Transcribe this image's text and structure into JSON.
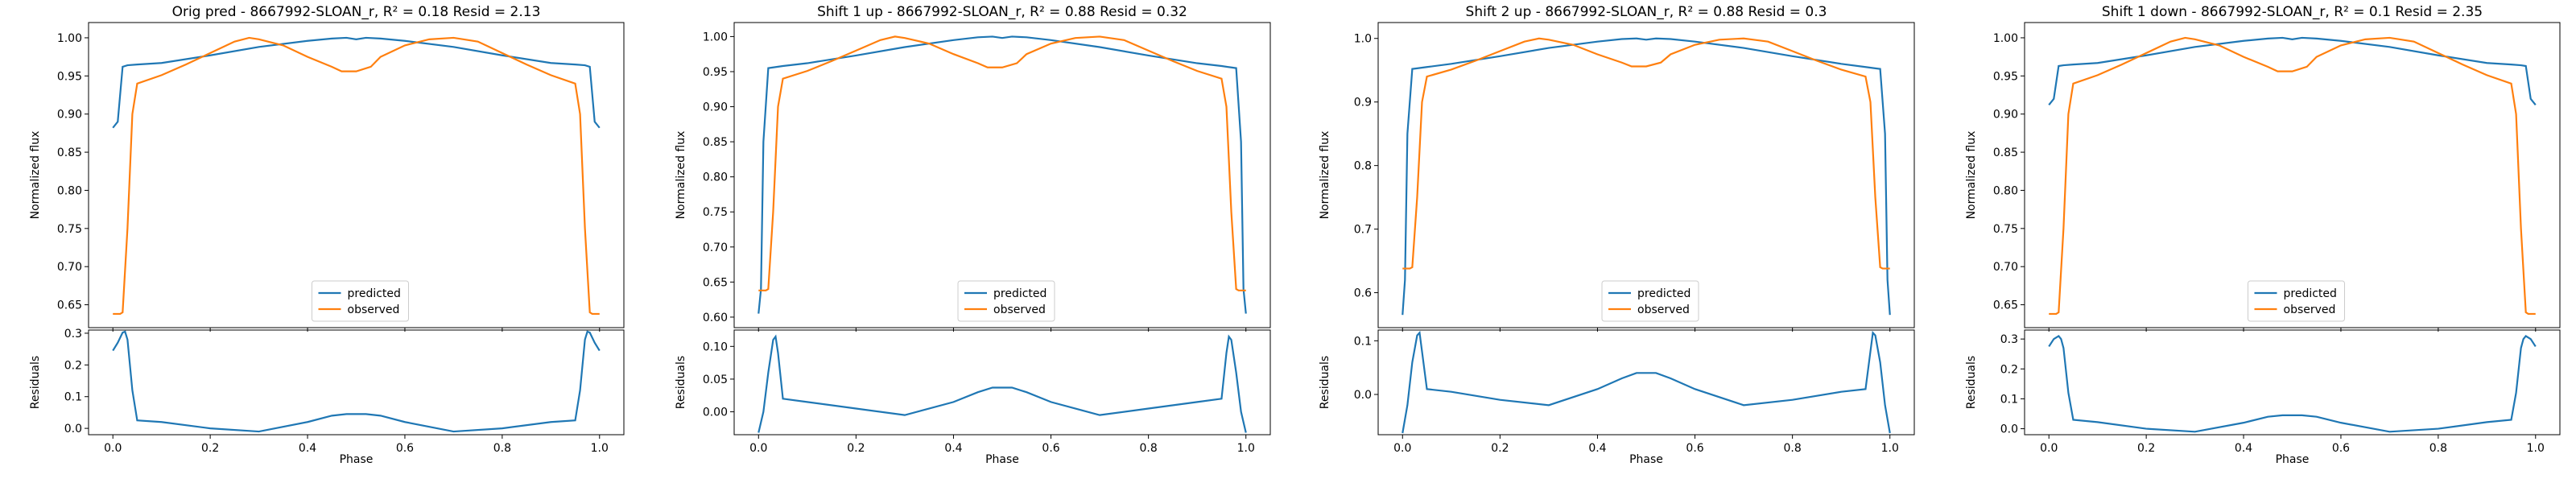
{
  "colors": {
    "predicted": "#1f77b4",
    "observed": "#ff7f0e"
  },
  "chart_data": [
    {
      "type": "line",
      "title": "Orig pred - 8667992-SLOAN_r, R² = 0.18 Resid = 2.13",
      "xlabel": "Phase",
      "ylabel": "Normalized flux",
      "residual_ylabel": "Residuals",
      "xlim": [
        -0.05,
        1.05
      ],
      "ylim": [
        0.62,
        1.02
      ],
      "yticks": [
        "0.65",
        "0.70",
        "0.75",
        "0.80",
        "0.85",
        "0.90",
        "0.95",
        "1.00"
      ],
      "residual_ylim": [
        -0.02,
        0.31
      ],
      "residual_yticks": [
        "0.0",
        "0.1",
        "0.2",
        "0.3"
      ],
      "xticks": [
        "0.0",
        "0.2",
        "0.4",
        "0.6",
        "0.8",
        "1.0"
      ],
      "legend": {
        "position": "lower-center",
        "entries": [
          "predicted",
          "observed"
        ]
      },
      "series": [
        {
          "name": "predicted",
          "x": [
            0,
            0.01,
            0.02,
            0.03,
            0.05,
            0.1,
            0.2,
            0.3,
            0.4,
            0.45,
            0.48,
            0.5,
            0.52,
            0.55,
            0.6,
            0.7,
            0.8,
            0.9,
            0.95,
            0.97,
            0.98,
            0.99,
            1.0
          ],
          "y": [
            0.882,
            0.89,
            0.962,
            0.964,
            0.965,
            0.967,
            0.977,
            0.988,
            0.996,
            0.999,
            1.0,
            0.998,
            1.0,
            0.999,
            0.996,
            0.988,
            0.977,
            0.967,
            0.965,
            0.964,
            0.962,
            0.89,
            0.882
          ]
        },
        {
          "name": "observed",
          "x": [
            0,
            0.015,
            0.02,
            0.03,
            0.04,
            0.05,
            0.1,
            0.15,
            0.2,
            0.25,
            0.28,
            0.3,
            0.35,
            0.4,
            0.45,
            0.47,
            0.5,
            0.53,
            0.55,
            0.6,
            0.65,
            0.7,
            0.72,
            0.75,
            0.8,
            0.85,
            0.9,
            0.95,
            0.96,
            0.97,
            0.98,
            0.985,
            1.0
          ],
          "y": [
            0.638,
            0.638,
            0.64,
            0.75,
            0.9,
            0.94,
            0.951,
            0.965,
            0.98,
            0.995,
            1.0,
            0.998,
            0.99,
            0.975,
            0.962,
            0.956,
            0.956,
            0.962,
            0.975,
            0.99,
            0.998,
            1.0,
            0.998,
            0.995,
            0.98,
            0.965,
            0.951,
            0.94,
            0.9,
            0.75,
            0.64,
            0.638,
            0.638
          ]
        }
      ],
      "residuals": {
        "x": [
          0,
          0.01,
          0.02,
          0.025,
          0.03,
          0.04,
          0.05,
          0.1,
          0.2,
          0.3,
          0.4,
          0.45,
          0.48,
          0.5,
          0.52,
          0.55,
          0.6,
          0.7,
          0.8,
          0.9,
          0.95,
          0.96,
          0.97,
          0.975,
          0.98,
          0.99,
          1.0
        ],
        "y": [
          0.245,
          0.27,
          0.302,
          0.305,
          0.28,
          0.12,
          0.025,
          0.02,
          0.0,
          -0.01,
          0.02,
          0.04,
          0.045,
          0.045,
          0.045,
          0.04,
          0.02,
          -0.01,
          0.0,
          0.02,
          0.025,
          0.12,
          0.28,
          0.305,
          0.302,
          0.27,
          0.245
        ]
      }
    },
    {
      "type": "line",
      "title": "Shift 1 up - 8667992-SLOAN_r, R² = 0.88 Resid = 0.32",
      "xlabel": "Phase",
      "ylabel": "Normalized flux",
      "residual_ylabel": "Residuals",
      "xlim": [
        -0.05,
        1.05
      ],
      "ylim": [
        0.585,
        1.02
      ],
      "yticks": [
        "0.60",
        "0.65",
        "0.70",
        "0.75",
        "0.80",
        "0.85",
        "0.90",
        "0.95",
        "1.00"
      ],
      "residual_ylim": [
        -0.035,
        0.125
      ],
      "residual_yticks": [
        "0.00",
        "0.05",
        "0.10"
      ],
      "xticks": [
        "0.0",
        "0.2",
        "0.4",
        "0.6",
        "0.8",
        "1.0"
      ],
      "legend": {
        "position": "lower-center",
        "entries": [
          "predicted",
          "observed"
        ]
      },
      "series": [
        {
          "name": "predicted",
          "x": [
            0,
            0.005,
            0.01,
            0.02,
            0.03,
            0.05,
            0.1,
            0.2,
            0.3,
            0.4,
            0.45,
            0.48,
            0.5,
            0.52,
            0.55,
            0.6,
            0.7,
            0.8,
            0.9,
            0.95,
            0.97,
            0.98,
            0.99,
            0.995,
            1.0
          ],
          "y": [
            0.605,
            0.64,
            0.85,
            0.955,
            0.956,
            0.958,
            0.962,
            0.973,
            0.985,
            0.995,
            0.999,
            1.0,
            0.998,
            1.0,
            0.999,
            0.995,
            0.985,
            0.973,
            0.962,
            0.958,
            0.956,
            0.955,
            0.85,
            0.64,
            0.605
          ]
        },
        {
          "name": "observed",
          "x": [
            0,
            0.015,
            0.02,
            0.03,
            0.04,
            0.05,
            0.1,
            0.15,
            0.2,
            0.25,
            0.28,
            0.3,
            0.35,
            0.4,
            0.45,
            0.47,
            0.5,
            0.53,
            0.55,
            0.6,
            0.65,
            0.7,
            0.72,
            0.75,
            0.8,
            0.85,
            0.9,
            0.95,
            0.96,
            0.97,
            0.98,
            0.985,
            1.0
          ],
          "y": [
            0.638,
            0.638,
            0.64,
            0.75,
            0.9,
            0.94,
            0.951,
            0.965,
            0.98,
            0.995,
            1.0,
            0.998,
            0.99,
            0.975,
            0.962,
            0.956,
            0.956,
            0.962,
            0.975,
            0.99,
            0.998,
            1.0,
            0.998,
            0.995,
            0.98,
            0.965,
            0.951,
            0.94,
            0.9,
            0.75,
            0.64,
            0.638,
            0.638
          ]
        }
      ],
      "residuals": {
        "x": [
          0,
          0.01,
          0.02,
          0.03,
          0.035,
          0.04,
          0.05,
          0.1,
          0.2,
          0.3,
          0.4,
          0.45,
          0.48,
          0.5,
          0.52,
          0.55,
          0.6,
          0.7,
          0.8,
          0.9,
          0.95,
          0.96,
          0.965,
          0.97,
          0.98,
          0.99,
          1.0
        ],
        "y": [
          -0.032,
          0.0,
          0.06,
          0.11,
          0.115,
          0.09,
          0.02,
          0.015,
          0.005,
          -0.005,
          0.015,
          0.03,
          0.037,
          0.037,
          0.037,
          0.03,
          0.015,
          -0.005,
          0.005,
          0.015,
          0.02,
          0.09,
          0.115,
          0.11,
          0.06,
          0.0,
          -0.032
        ]
      }
    },
    {
      "type": "line",
      "title": "Shift 2 up - 8667992-SLOAN_r, R² = 0.88 Resid = 0.3",
      "xlabel": "Phase",
      "ylabel": "Normalized flux",
      "residual_ylabel": "Residuals",
      "xlim": [
        -0.05,
        1.05
      ],
      "ylim": [
        0.545,
        1.025
      ],
      "yticks": [
        "0.6",
        "0.7",
        "0.8",
        "0.9",
        "1.0"
      ],
      "residual_ylim": [
        -0.075,
        0.12
      ],
      "residual_yticks": [
        "0.0",
        "0.1"
      ],
      "xticks": [
        "0.0",
        "0.2",
        "0.4",
        "0.6",
        "0.8",
        "1.0"
      ],
      "legend": {
        "position": "lower-center",
        "entries": [
          "predicted",
          "observed"
        ]
      },
      "series": [
        {
          "name": "predicted",
          "x": [
            0,
            0.005,
            0.01,
            0.02,
            0.03,
            0.05,
            0.1,
            0.2,
            0.3,
            0.4,
            0.45,
            0.48,
            0.5,
            0.52,
            0.55,
            0.6,
            0.7,
            0.8,
            0.9,
            0.95,
            0.97,
            0.98,
            0.99,
            0.995,
            1.0
          ],
          "y": [
            0.565,
            0.62,
            0.85,
            0.952,
            0.953,
            0.955,
            0.96,
            0.972,
            0.985,
            0.995,
            0.999,
            1.0,
            0.998,
            1.0,
            0.999,
            0.995,
            0.985,
            0.972,
            0.96,
            0.955,
            0.953,
            0.952,
            0.85,
            0.62,
            0.565
          ]
        },
        {
          "name": "observed",
          "x": [
            0,
            0.015,
            0.02,
            0.03,
            0.04,
            0.05,
            0.1,
            0.15,
            0.2,
            0.25,
            0.28,
            0.3,
            0.35,
            0.4,
            0.45,
            0.47,
            0.5,
            0.53,
            0.55,
            0.6,
            0.65,
            0.7,
            0.72,
            0.75,
            0.8,
            0.85,
            0.9,
            0.95,
            0.96,
            0.97,
            0.98,
            0.985,
            1.0
          ],
          "y": [
            0.638,
            0.638,
            0.64,
            0.75,
            0.9,
            0.94,
            0.951,
            0.965,
            0.98,
            0.995,
            1.0,
            0.998,
            0.99,
            0.975,
            0.962,
            0.956,
            0.956,
            0.962,
            0.975,
            0.99,
            0.998,
            1.0,
            0.998,
            0.995,
            0.98,
            0.965,
            0.951,
            0.94,
            0.9,
            0.75,
            0.64,
            0.638,
            0.638
          ]
        }
      ],
      "residuals": {
        "x": [
          0,
          0.01,
          0.02,
          0.03,
          0.035,
          0.04,
          0.05,
          0.1,
          0.2,
          0.3,
          0.4,
          0.45,
          0.48,
          0.5,
          0.52,
          0.55,
          0.6,
          0.7,
          0.8,
          0.9,
          0.95,
          0.96,
          0.965,
          0.97,
          0.98,
          0.99,
          1.0
        ],
        "y": [
          -0.072,
          -0.02,
          0.06,
          0.11,
          0.115,
          0.08,
          0.01,
          0.005,
          -0.01,
          -0.02,
          0.01,
          0.03,
          0.04,
          0.04,
          0.04,
          0.03,
          0.01,
          -0.02,
          -0.01,
          0.005,
          0.01,
          0.08,
          0.115,
          0.11,
          0.06,
          -0.02,
          -0.072
        ]
      }
    },
    {
      "type": "line",
      "title": "Shift 1 down - 8667992-SLOAN_r, R² = 0.1 Resid = 2.35",
      "xlabel": "Phase",
      "ylabel": "Normalized flux",
      "residual_ylabel": "Residuals",
      "xlim": [
        -0.05,
        1.05
      ],
      "ylim": [
        0.62,
        1.02
      ],
      "yticks": [
        "0.65",
        "0.70",
        "0.75",
        "0.80",
        "0.85",
        "0.90",
        "0.95",
        "1.00"
      ],
      "residual_ylim": [
        -0.02,
        0.33
      ],
      "residual_yticks": [
        "0.0",
        "0.1",
        "0.2",
        "0.3"
      ],
      "xticks": [
        "0.0",
        "0.2",
        "0.4",
        "0.6",
        "0.8",
        "1.0"
      ],
      "legend": {
        "position": "lower-center",
        "entries": [
          "predicted",
          "observed"
        ]
      },
      "series": [
        {
          "name": "predicted",
          "x": [
            0,
            0.01,
            0.02,
            0.03,
            0.05,
            0.1,
            0.2,
            0.3,
            0.4,
            0.45,
            0.48,
            0.5,
            0.52,
            0.55,
            0.6,
            0.7,
            0.8,
            0.9,
            0.95,
            0.97,
            0.98,
            0.99,
            1.0
          ],
          "y": [
            0.912,
            0.92,
            0.963,
            0.964,
            0.965,
            0.967,
            0.977,
            0.988,
            0.996,
            0.999,
            1.0,
            0.998,
            1.0,
            0.999,
            0.996,
            0.988,
            0.977,
            0.967,
            0.965,
            0.964,
            0.963,
            0.92,
            0.912
          ]
        },
        {
          "name": "observed",
          "x": [
            0,
            0.015,
            0.02,
            0.03,
            0.04,
            0.05,
            0.1,
            0.15,
            0.2,
            0.25,
            0.28,
            0.3,
            0.35,
            0.4,
            0.45,
            0.47,
            0.5,
            0.53,
            0.55,
            0.6,
            0.65,
            0.7,
            0.72,
            0.75,
            0.8,
            0.85,
            0.9,
            0.95,
            0.96,
            0.97,
            0.98,
            0.985,
            1.0
          ],
          "y": [
            0.638,
            0.638,
            0.64,
            0.75,
            0.9,
            0.94,
            0.951,
            0.965,
            0.98,
            0.995,
            1.0,
            0.998,
            0.99,
            0.975,
            0.962,
            0.956,
            0.956,
            0.962,
            0.975,
            0.99,
            0.998,
            1.0,
            0.998,
            0.995,
            0.98,
            0.965,
            0.951,
            0.94,
            0.9,
            0.75,
            0.64,
            0.638,
            0.638
          ]
        }
      ],
      "residuals": {
        "x": [
          0,
          0.01,
          0.02,
          0.025,
          0.03,
          0.04,
          0.05,
          0.1,
          0.2,
          0.3,
          0.4,
          0.45,
          0.48,
          0.5,
          0.52,
          0.55,
          0.6,
          0.7,
          0.8,
          0.9,
          0.95,
          0.96,
          0.97,
          0.975,
          0.98,
          0.99,
          1.0
        ],
        "y": [
          0.275,
          0.3,
          0.31,
          0.3,
          0.27,
          0.12,
          0.03,
          0.022,
          0.0,
          -0.01,
          0.02,
          0.04,
          0.045,
          0.045,
          0.045,
          0.04,
          0.02,
          -0.01,
          0.0,
          0.022,
          0.03,
          0.12,
          0.27,
          0.3,
          0.31,
          0.3,
          0.275
        ]
      }
    }
  ]
}
